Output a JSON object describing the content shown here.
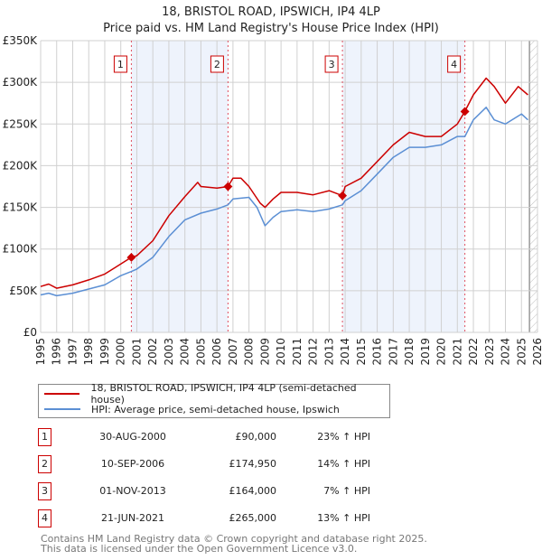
{
  "title": "18, BRISTOL ROAD, IPSWICH, IP4 4LP",
  "subtitle": "Price paid vs. HM Land Registry's House Price Index (HPI)",
  "chart_data": {
    "type": "line",
    "xlim": [
      1995,
      2026
    ],
    "ylim": [
      0,
      350000
    ],
    "yticks": [
      0,
      50000,
      100000,
      150000,
      200000,
      250000,
      300000,
      350000
    ],
    "ytick_labels": [
      "£0",
      "£50K",
      "£100K",
      "£150K",
      "£200K",
      "£250K",
      "£300K",
      "£350K"
    ],
    "xticks": [
      1995,
      1996,
      1997,
      1998,
      1999,
      2000,
      2001,
      2002,
      2003,
      2004,
      2005,
      2006,
      2007,
      2008,
      2009,
      2010,
      2011,
      2012,
      2013,
      2014,
      2015,
      2016,
      2017,
      2018,
      2019,
      2020,
      2021,
      2022,
      2023,
      2024,
      2025,
      2026
    ],
    "grid": true,
    "colors": {
      "property": "#cc0000",
      "hpi": "#5b8fd4",
      "shade": "#eef3fc",
      "sale_line": "#e05060"
    },
    "shaded_ranges": [
      [
        2000.66,
        2006.69
      ],
      [
        2013.83,
        2021.47
      ]
    ],
    "hatched_from": 2025.5,
    "series": [
      {
        "name": "18, BRISTOL ROAD, IPSWICH, IP4 4LP (semi-detached house)",
        "key": "property",
        "x": [
          1995,
          1995.5,
          1996,
          1997,
          1998,
          1999,
          2000,
          2000.66,
          2001,
          2002,
          2003,
          2004,
          2004.8,
          2005,
          2006,
          2006.69,
          2007,
          2007.5,
          2008,
          2008.7,
          2009,
          2009.5,
          2010,
          2011,
          2012,
          2013,
          2013.83,
          2014,
          2015,
          2016,
          2017,
          2018,
          2019,
          2020,
          2021,
          2021.47,
          2022,
          2022.8,
          2023.3,
          2024,
          2024.8,
          2025.4
        ],
        "y": [
          55000,
          58000,
          53000,
          57000,
          63000,
          70000,
          82000,
          90000,
          92000,
          110000,
          140000,
          163000,
          180000,
          175000,
          173000,
          174950,
          185000,
          185000,
          175000,
          155000,
          150000,
          160000,
          168000,
          168000,
          165000,
          170000,
          164000,
          175000,
          185000,
          205000,
          225000,
          240000,
          235000,
          235000,
          250000,
          265000,
          285000,
          305000,
          295000,
          275000,
          295000,
          285000
        ]
      },
      {
        "name": "HPI: Average price, semi-detached house, Ipswich",
        "key": "hpi",
        "x": [
          1995,
          1995.5,
          1996,
          1997,
          1998,
          1999,
          2000,
          2000.66,
          2001,
          2002,
          2003,
          2004,
          2005,
          2006,
          2006.69,
          2007,
          2008,
          2008.5,
          2009,
          2009.5,
          2010,
          2011,
          2012,
          2013,
          2013.83,
          2014,
          2015,
          2016,
          2017,
          2018,
          2019,
          2020,
          2021,
          2021.47,
          2022,
          2022.8,
          2023.3,
          2024,
          2025,
          2025.4
        ],
        "y": [
          45000,
          47000,
          44000,
          47000,
          52000,
          57000,
          68000,
          73000,
          76000,
          90000,
          115000,
          135000,
          143000,
          148000,
          153000,
          160000,
          162000,
          150000,
          128000,
          138000,
          145000,
          147000,
          145000,
          148000,
          153000,
          158000,
          170000,
          190000,
          210000,
          222000,
          222000,
          225000,
          235000,
          235000,
          255000,
          270000,
          255000,
          250000,
          262000,
          255000
        ]
      }
    ],
    "sales": [
      {
        "label": "1",
        "x": 2000.66,
        "y": 90000
      },
      {
        "label": "2",
        "x": 2006.69,
        "y": 174950
      },
      {
        "label": "3",
        "x": 2013.83,
        "y": 164000
      },
      {
        "label": "4",
        "x": 2021.47,
        "y": 265000
      }
    ]
  },
  "legend": {
    "property": "18, BRISTOL ROAD, IPSWICH, IP4 4LP (semi-detached house)",
    "hpi": "HPI: Average price, semi-detached house, Ipswich"
  },
  "table": [
    {
      "num": "1",
      "date": "30-AUG-2000",
      "price": "£90,000",
      "hpi": "23% ↑ HPI"
    },
    {
      "num": "2",
      "date": "10-SEP-2006",
      "price": "£174,950",
      "hpi": "14% ↑ HPI"
    },
    {
      "num": "3",
      "date": "01-NOV-2013",
      "price": "£164,000",
      "hpi": "7% ↑ HPI"
    },
    {
      "num": "4",
      "date": "21-JUN-2021",
      "price": "£265,000",
      "hpi": "13% ↑ HPI"
    }
  ],
  "footer": {
    "line1": "Contains HM Land Registry data © Crown copyright and database right 2025.",
    "line2": "This data is licensed under the Open Government Licence v3.0."
  }
}
